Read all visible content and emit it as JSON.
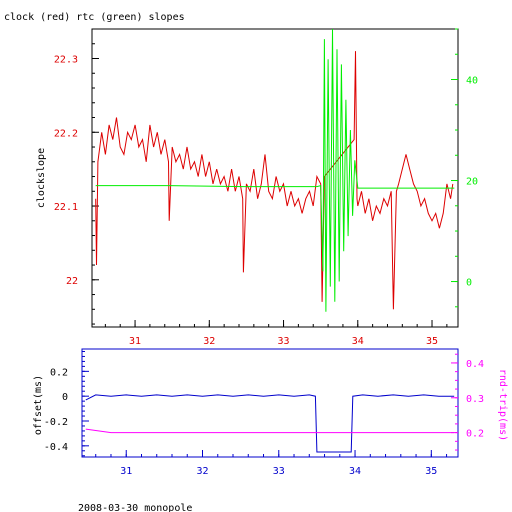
{
  "figure": {
    "title": "clock (red) rtc (green) slopes",
    "footer": "2008-03-30 monopole"
  },
  "colors": {
    "clock": "#dd0000",
    "rtc": "#00ee00",
    "offset": "#0000cc",
    "rndtrip": "#ff00ff",
    "axis_black": "#000000"
  },
  "chart_data": [
    {
      "id": "top",
      "type": "line",
      "ylabel": "clockslope",
      "x_ticks": [
        31,
        32,
        33,
        34,
        35
      ],
      "x_range": [
        30.42,
        35.35
      ],
      "left_axis": {
        "range": [
          21.936,
          22.34
        ],
        "ticks": [
          22,
          22.1,
          22.2,
          22.3
        ],
        "tick_labels": [
          "22",
          "22.1",
          "22.2",
          "22.3"
        ]
      },
      "right_axis": {
        "range": [
          -9,
          50
        ],
        "ticks": [
          0,
          20,
          40
        ],
        "tick_labels": [
          "0",
          "20",
          "40"
        ]
      },
      "series": [
        {
          "color": "clock",
          "axis": "left",
          "points": [
            [
              30.47,
              22.11
            ],
            [
              30.48,
              22.02
            ],
            [
              30.5,
              22.16
            ],
            [
              30.55,
              22.2
            ],
            [
              30.6,
              22.17
            ],
            [
              30.65,
              22.21
            ],
            [
              30.7,
              22.19
            ],
            [
              30.75,
              22.22
            ],
            [
              30.8,
              22.18
            ],
            [
              30.85,
              22.17
            ],
            [
              30.9,
              22.2
            ],
            [
              30.95,
              22.19
            ],
            [
              31.0,
              22.21
            ],
            [
              31.05,
              22.18
            ],
            [
              31.1,
              22.19
            ],
            [
              31.15,
              22.16
            ],
            [
              31.2,
              22.21
            ],
            [
              31.25,
              22.18
            ],
            [
              31.3,
              22.2
            ],
            [
              31.35,
              22.17
            ],
            [
              31.4,
              22.19
            ],
            [
              31.45,
              22.16
            ],
            [
              31.46,
              22.08
            ],
            [
              31.5,
              22.18
            ],
            [
              31.55,
              22.16
            ],
            [
              31.6,
              22.17
            ],
            [
              31.65,
              22.15
            ],
            [
              31.7,
              22.18
            ],
            [
              31.75,
              22.15
            ],
            [
              31.8,
              22.16
            ],
            [
              31.85,
              22.14
            ],
            [
              31.9,
              22.17
            ],
            [
              31.95,
              22.14
            ],
            [
              32.0,
              22.16
            ],
            [
              32.05,
              22.13
            ],
            [
              32.1,
              22.15
            ],
            [
              32.15,
              22.13
            ],
            [
              32.2,
              22.14
            ],
            [
              32.25,
              22.12
            ],
            [
              32.3,
              22.15
            ],
            [
              32.35,
              22.12
            ],
            [
              32.4,
              22.14
            ],
            [
              32.45,
              22.11
            ],
            [
              32.46,
              22.01
            ],
            [
              32.5,
              22.13
            ],
            [
              32.55,
              22.12
            ],
            [
              32.6,
              22.15
            ],
            [
              32.65,
              22.11
            ],
            [
              32.7,
              22.13
            ],
            [
              32.75,
              22.17
            ],
            [
              32.8,
              22.12
            ],
            [
              32.85,
              22.11
            ],
            [
              32.9,
              22.14
            ],
            [
              32.95,
              22.12
            ],
            [
              33.0,
              22.13
            ],
            [
              33.05,
              22.1
            ],
            [
              33.1,
              22.12
            ],
            [
              33.15,
              22.1
            ],
            [
              33.2,
              22.11
            ],
            [
              33.25,
              22.09
            ],
            [
              33.3,
              22.11
            ],
            [
              33.35,
              22.12
            ],
            [
              33.4,
              22.1
            ],
            [
              33.45,
              22.14
            ],
            [
              33.5,
              22.13
            ],
            [
              33.52,
              21.97
            ],
            [
              33.55,
              22.14
            ],
            [
              33.95,
              22.19
            ],
            [
              33.97,
              22.31
            ],
            [
              33.99,
              22.11
            ],
            [
              34.0,
              22.1
            ],
            [
              34.05,
              22.12
            ],
            [
              34.1,
              22.09
            ],
            [
              34.15,
              22.11
            ],
            [
              34.2,
              22.08
            ],
            [
              34.25,
              22.1
            ],
            [
              34.3,
              22.09
            ],
            [
              34.35,
              22.11
            ],
            [
              34.4,
              22.1
            ],
            [
              34.45,
              22.12
            ],
            [
              34.48,
              21.96
            ],
            [
              34.52,
              22.12
            ],
            [
              34.55,
              22.13
            ],
            [
              34.6,
              22.15
            ],
            [
              34.65,
              22.17
            ],
            [
              34.7,
              22.15
            ],
            [
              34.75,
              22.13
            ],
            [
              34.8,
              22.12
            ],
            [
              34.85,
              22.1
            ],
            [
              34.9,
              22.11
            ],
            [
              34.95,
              22.09
            ],
            [
              35.0,
              22.08
            ],
            [
              35.05,
              22.09
            ],
            [
              35.1,
              22.07
            ],
            [
              35.15,
              22.09
            ],
            [
              35.2,
              22.13
            ],
            [
              35.25,
              22.11
            ],
            [
              35.28,
              22.13
            ]
          ]
        },
        {
          "color": "rtc",
          "axis": "right",
          "points": [
            [
              30.47,
              19
            ],
            [
              31.46,
              19
            ],
            [
              32.46,
              18.8
            ],
            [
              33.45,
              18.8
            ],
            [
              33.5,
              19
            ],
            [
              33.53,
              2
            ],
            [
              33.55,
              48
            ],
            [
              33.57,
              -6
            ],
            [
              33.6,
              44
            ],
            [
              33.63,
              -1
            ],
            [
              33.66,
              50
            ],
            [
              33.69,
              -4
            ],
            [
              33.72,
              46
            ],
            [
              33.75,
              0
            ],
            [
              33.78,
              43
            ],
            [
              33.81,
              6
            ],
            [
              33.84,
              36
            ],
            [
              33.87,
              9
            ],
            [
              33.9,
              30
            ],
            [
              33.93,
              13
            ],
            [
              33.96,
              24
            ],
            [
              34.0,
              18.5
            ],
            [
              34.45,
              18.5
            ],
            [
              35.3,
              18.5
            ]
          ]
        }
      ]
    },
    {
      "id": "bottom",
      "type": "line",
      "ylabel_left": "offset(ms)",
      "ylabel_right": "rnd-trip(ms)",
      "x_ticks": [
        31,
        32,
        33,
        34,
        35
      ],
      "x_range": [
        30.42,
        35.35
      ],
      "left_axis": {
        "range": [
          -0.49,
          0.38
        ],
        "ticks": [
          -0.4,
          -0.2,
          0,
          0.2
        ],
        "tick_labels": [
          "-0.4",
          "-0.2",
          "0",
          "0.2"
        ]
      },
      "right_axis": {
        "range": [
          0.13,
          0.44
        ],
        "ticks": [
          0.2,
          0.3,
          0.4
        ],
        "tick_labels": [
          "0.2",
          "0.3",
          "0.4"
        ]
      },
      "series": [
        {
          "color": "offset",
          "axis": "left",
          "points": [
            [
              30.47,
              -0.03
            ],
            [
              30.6,
              0.01
            ],
            [
              30.8,
              0.0
            ],
            [
              31.0,
              0.01
            ],
            [
              31.2,
              0.0
            ],
            [
              31.4,
              0.01
            ],
            [
              31.6,
              0.0
            ],
            [
              31.8,
              0.01
            ],
            [
              32.0,
              0.0
            ],
            [
              32.2,
              0.01
            ],
            [
              32.4,
              0.0
            ],
            [
              32.6,
              0.01
            ],
            [
              32.8,
              0.0
            ],
            [
              33.0,
              0.01
            ],
            [
              33.2,
              0.0
            ],
            [
              33.4,
              0.01
            ],
            [
              33.48,
              0.0
            ],
            [
              33.5,
              -0.45
            ],
            [
              33.95,
              -0.45
            ],
            [
              33.97,
              0.0
            ],
            [
              34.1,
              0.01
            ],
            [
              34.3,
              0.0
            ],
            [
              34.5,
              0.01
            ],
            [
              34.7,
              0.0
            ],
            [
              34.9,
              0.01
            ],
            [
              35.1,
              0.0
            ],
            [
              35.3,
              0.0
            ]
          ]
        },
        {
          "color": "rndtrip",
          "axis": "right",
          "points": [
            [
              30.47,
              0.21
            ],
            [
              30.8,
              0.2
            ],
            [
              31.2,
              0.2
            ],
            [
              31.6,
              0.2
            ],
            [
              32.0,
              0.2
            ],
            [
              32.4,
              0.2
            ],
            [
              32.8,
              0.2
            ],
            [
              33.2,
              0.2
            ],
            [
              33.5,
              0.2
            ],
            [
              33.55,
              0.2
            ],
            [
              33.95,
              0.2
            ],
            [
              34.1,
              0.2
            ],
            [
              34.5,
              0.2
            ],
            [
              34.9,
              0.2
            ],
            [
              35.3,
              0.2
            ]
          ]
        }
      ]
    }
  ]
}
